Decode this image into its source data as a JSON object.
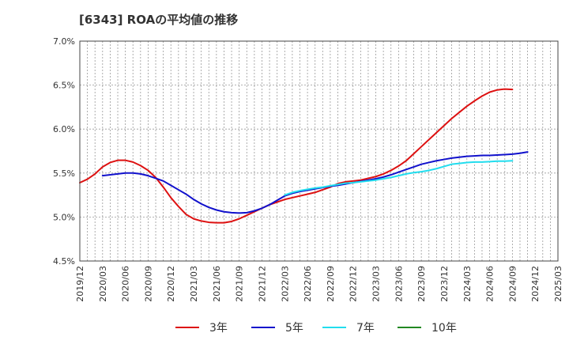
{
  "chart_data": {
    "type": "line",
    "title": "[6343]  ROAの平均値の推移",
    "xlabel": "",
    "ylabel": "",
    "y_ticks": [
      "4.5%",
      "5.0%",
      "5.5%",
      "6.0%",
      "6.5%",
      "7.0%"
    ],
    "ylim": [
      4.5,
      7.0
    ],
    "x_ticks": [
      "2019/12",
      "2020/03",
      "2020/06",
      "2020/09",
      "2020/12",
      "2021/03",
      "2021/06",
      "2021/09",
      "2021/12",
      "2022/03",
      "2022/06",
      "2022/09",
      "2022/12",
      "2023/03",
      "2023/06",
      "2023/09",
      "2023/12",
      "2024/03",
      "2024/06",
      "2024/09",
      "2024/12",
      "2025/03"
    ],
    "grid": true,
    "legend_position": "bottom",
    "series": [
      {
        "name": "3年",
        "color": "#dd1111",
        "start": "2019/12",
        "values": [
          5.39,
          5.43,
          5.49,
          5.57,
          5.62,
          5.645,
          5.645,
          5.625,
          5.585,
          5.53,
          5.45,
          5.34,
          5.22,
          5.12,
          5.03,
          4.98,
          4.955,
          4.94,
          4.935,
          4.935,
          4.95,
          4.98,
          5.02,
          5.06,
          5.1,
          5.14,
          5.17,
          5.2,
          5.22,
          5.24,
          5.26,
          5.28,
          5.31,
          5.34,
          5.38,
          5.4,
          5.41,
          5.42,
          5.44,
          5.46,
          5.49,
          5.53,
          5.58,
          5.64,
          5.72,
          5.8,
          5.88,
          5.96,
          6.04,
          6.12,
          6.19,
          6.26,
          6.32,
          6.375,
          6.42,
          6.445,
          6.455,
          6.45
        ]
      },
      {
        "name": "5年",
        "color": "#1111cc",
        "start": "2020/03",
        "values": [
          5.47,
          5.48,
          5.49,
          5.5,
          5.5,
          5.49,
          5.47,
          5.44,
          5.41,
          5.36,
          5.31,
          5.26,
          5.2,
          5.15,
          5.11,
          5.08,
          5.06,
          5.05,
          5.045,
          5.05,
          5.07,
          5.1,
          5.14,
          5.19,
          5.24,
          5.27,
          5.29,
          5.305,
          5.32,
          5.335,
          5.35,
          5.36,
          5.375,
          5.39,
          5.405,
          5.42,
          5.435,
          5.455,
          5.48,
          5.51,
          5.54,
          5.57,
          5.6,
          5.62,
          5.64,
          5.655,
          5.67,
          5.68,
          5.69,
          5.695,
          5.7,
          5.7,
          5.705,
          5.71,
          5.715,
          5.725,
          5.74
        ]
      },
      {
        "name": "7年",
        "color": "#22ddee",
        "start": "2022/03",
        "values": [
          5.25,
          5.28,
          5.3,
          5.315,
          5.33,
          5.34,
          5.355,
          5.37,
          5.385,
          5.39,
          5.4,
          5.41,
          5.42,
          5.435,
          5.45,
          5.47,
          5.49,
          5.505,
          5.515,
          5.53,
          5.55,
          5.575,
          5.6,
          5.61,
          5.62,
          5.625,
          5.625,
          5.63,
          5.635,
          5.635,
          5.64
        ]
      },
      {
        "name": "10年",
        "color": "#228822",
        "start": "2025/03",
        "values": []
      }
    ]
  }
}
